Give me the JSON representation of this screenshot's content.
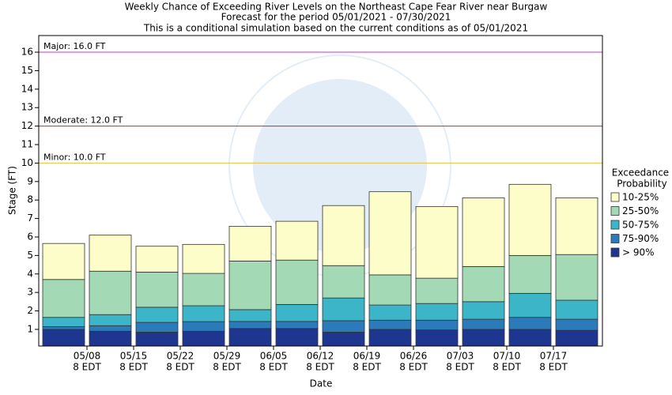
{
  "chart_data": {
    "type": "bar",
    "title": [
      "Weekly Chance of Exceeding River Levels on the Northeast Cape Fear River near Burgaw",
      "Forecast for the period 05/01/2021 - 07/30/2021",
      "This is a conditional simulation based on the current conditions as of 05/01/2021"
    ],
    "x_label": "Date",
    "y_label": "Stage (FT)",
    "legend_title": [
      "Exceedance",
      "Probability"
    ],
    "ylim": [
      0.1,
      16.9
    ],
    "yticks": [
      1,
      2,
      3,
      4,
      5,
      6,
      7,
      8,
      9,
      10,
      11,
      12,
      13,
      14,
      15,
      16
    ],
    "xtick_labels": [
      [
        "05/08",
        "8 EDT"
      ],
      [
        "05/15",
        "8 EDT"
      ],
      [
        "05/22",
        "8 EDT"
      ],
      [
        "05/29",
        "8 EDT"
      ],
      [
        "06/05",
        "8 EDT"
      ],
      [
        "06/12",
        "8 EDT"
      ],
      [
        "06/19",
        "8 EDT"
      ],
      [
        "06/26",
        "8 EDT"
      ],
      [
        "07/03",
        "8 EDT"
      ],
      [
        "07/10",
        "8 EDT"
      ],
      [
        "07/17",
        "8 EDT"
      ]
    ],
    "thresholds": [
      {
        "label": "Major: 16.0 FT",
        "value": 16.0,
        "color": "#cc33cc"
      },
      {
        "label": "Moderate: 12.0 FT",
        "value": 12.0,
        "color": "#dd2222"
      },
      {
        "label": "Minor: 10.0 FT",
        "value": 10.0,
        "color": "#e8c040"
      }
    ],
    "series": [
      {
        "name": "> 90%",
        "color": "#1f3690",
        "values": [
          1.0,
          0.9,
          0.85,
          0.9,
          1.05,
          1.05,
          0.85,
          1.0,
          0.97,
          1.0,
          1.0,
          0.95
        ]
      },
      {
        "name": "75-90%",
        "color": "#2b7bba",
        "values": [
          1.15,
          1.2,
          1.38,
          1.42,
          1.43,
          1.43,
          1.47,
          1.5,
          1.5,
          1.55,
          1.65,
          1.55
        ]
      },
      {
        "name": "50-75%",
        "color": "#3db5c8",
        "values": [
          1.65,
          1.8,
          2.2,
          2.28,
          2.07,
          2.35,
          2.7,
          2.32,
          2.4,
          2.5,
          2.95,
          2.58
        ]
      },
      {
        "name": "25-50%",
        "color": "#a3dab5",
        "values": [
          3.7,
          4.15,
          4.1,
          4.03,
          4.7,
          4.75,
          4.45,
          3.95,
          3.77,
          4.4,
          5.0,
          5.05
        ]
      },
      {
        "name": "10-25%",
        "color": "#fdfdc9",
        "values": [
          5.65,
          6.1,
          5.5,
          5.6,
          6.58,
          6.85,
          7.7,
          8.45,
          7.65,
          8.12,
          8.85,
          8.12
        ]
      }
    ]
  }
}
